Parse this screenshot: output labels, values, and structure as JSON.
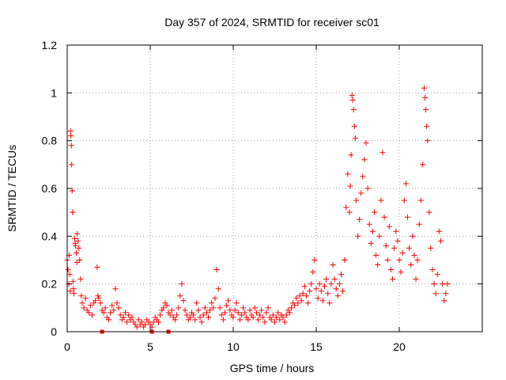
{
  "chart_data": {
    "type": "scatter",
    "title": "Day 357 of 2024, SRMTID for receiver sc01",
    "xlabel": "GPS time / hours",
    "ylabel": "SRMTID / TECUs",
    "xlim": [
      0,
      25
    ],
    "ylim": [
      0,
      1.2
    ],
    "x_ticks": [
      0,
      5,
      10,
      15,
      20
    ],
    "x_tick_labels": [
      "0",
      "5",
      "10",
      "15",
      "20"
    ],
    "y_ticks": [
      0,
      0.2,
      0.4,
      0.6,
      0.8,
      1.0,
      1.2
    ],
    "y_tick_labels": [
      "0",
      "0.2",
      "0.4",
      "0.6",
      "0.8",
      "1",
      "1.2"
    ],
    "grid": true,
    "marker": "+",
    "marker_color": "#ff0000",
    "series": [
      {
        "name": "sc01",
        "points": [
          [
            0.0,
            0.3
          ],
          [
            0.05,
            0.26
          ],
          [
            0.1,
            0.2
          ],
          [
            0.12,
            0.32
          ],
          [
            0.15,
            0.24
          ],
          [
            0.18,
            0.17
          ],
          [
            0.2,
            0.84
          ],
          [
            0.22,
            0.82
          ],
          [
            0.25,
            0.78
          ],
          [
            0.27,
            0.7
          ],
          [
            0.3,
            0.59
          ],
          [
            0.32,
            0.5
          ],
          [
            0.35,
            0.21
          ],
          [
            0.38,
            0.18
          ],
          [
            0.4,
            0.16
          ],
          [
            0.45,
            0.39
          ],
          [
            0.48,
            0.37
          ],
          [
            0.5,
            0.36
          ],
          [
            0.55,
            0.33
          ],
          [
            0.58,
            0.29
          ],
          [
            0.6,
            0.41
          ],
          [
            0.65,
            0.38
          ],
          [
            0.7,
            0.35
          ],
          [
            0.75,
            0.3
          ],
          [
            0.8,
            0.22
          ],
          [
            0.85,
            0.15
          ],
          [
            0.9,
            0.12
          ],
          [
            1.0,
            0.1
          ],
          [
            1.1,
            0.14
          ],
          [
            1.2,
            0.09
          ],
          [
            1.3,
            0.08
          ],
          [
            1.4,
            0.11
          ],
          [
            1.5,
            0.07
          ],
          [
            1.6,
            0.12
          ],
          [
            1.7,
            0.13
          ],
          [
            1.8,
            0.27
          ],
          [
            1.85,
            0.15
          ],
          [
            1.9,
            0.14
          ],
          [
            2.0,
            0.12
          ],
          [
            2.1,
            0.09
          ],
          [
            2.2,
            0.08
          ],
          [
            2.3,
            0.1
          ],
          [
            2.4,
            0.06
          ],
          [
            2.5,
            0.05
          ],
          [
            2.6,
            0.08
          ],
          [
            2.7,
            0.11
          ],
          [
            2.8,
            0.09
          ],
          [
            2.9,
            0.18
          ],
          [
            3.0,
            0.12
          ],
          [
            3.1,
            0.1
          ],
          [
            3.2,
            0.07
          ],
          [
            3.3,
            0.05
          ],
          [
            3.4,
            0.06
          ],
          [
            3.5,
            0.08
          ],
          [
            3.6,
            0.04
          ],
          [
            3.7,
            0.07
          ],
          [
            3.8,
            0.05
          ],
          [
            3.9,
            0.06
          ],
          [
            4.0,
            0.04
          ],
          [
            4.1,
            0.03
          ],
          [
            4.2,
            0.02
          ],
          [
            4.3,
            0.05
          ],
          [
            4.4,
            0.03
          ],
          [
            4.5,
            0.04
          ],
          [
            4.6,
            0.02
          ],
          [
            4.7,
            0.03
          ],
          [
            4.8,
            0.05
          ],
          [
            4.9,
            0.04
          ],
          [
            5.0,
            0.03
          ],
          [
            5.1,
            0.02
          ],
          [
            5.2,
            0.04
          ],
          [
            5.3,
            0.06
          ],
          [
            5.4,
            0.05
          ],
          [
            5.5,
            0.04
          ],
          [
            5.6,
            0.07
          ],
          [
            5.7,
            0.09
          ],
          [
            5.8,
            0.1
          ],
          [
            5.9,
            0.12
          ],
          [
            6.0,
            0.11
          ],
          [
            6.1,
            0.08
          ],
          [
            6.2,
            0.07
          ],
          [
            6.3,
            0.09
          ],
          [
            6.4,
            0.06
          ],
          [
            6.5,
            0.05
          ],
          [
            6.6,
            0.07
          ],
          [
            6.7,
            0.1
          ],
          [
            6.8,
            0.15
          ],
          [
            6.9,
            0.2
          ],
          [
            7.0,
            0.13
          ],
          [
            7.1,
            0.09
          ],
          [
            7.2,
            0.07
          ],
          [
            7.3,
            0.05
          ],
          [
            7.4,
            0.06
          ],
          [
            7.5,
            0.08
          ],
          [
            7.6,
            0.07
          ],
          [
            7.7,
            0.05
          ],
          [
            7.8,
            0.12
          ],
          [
            7.9,
            0.09
          ],
          [
            8.0,
            0.06
          ],
          [
            8.1,
            0.04
          ],
          [
            8.2,
            0.07
          ],
          [
            8.3,
            0.1
          ],
          [
            8.4,
            0.08
          ],
          [
            8.5,
            0.06
          ],
          [
            8.6,
            0.09
          ],
          [
            8.7,
            0.12
          ],
          [
            8.8,
            0.1
          ],
          [
            8.9,
            0.14
          ],
          [
            9.0,
            0.26
          ],
          [
            9.1,
            0.18
          ],
          [
            9.2,
            0.1
          ],
          [
            9.3,
            0.07
          ],
          [
            9.4,
            0.05
          ],
          [
            9.5,
            0.08
          ],
          [
            9.6,
            0.11
          ],
          [
            9.7,
            0.13
          ],
          [
            9.8,
            0.09
          ],
          [
            9.9,
            0.07
          ],
          [
            10.0,
            0.06
          ],
          [
            10.1,
            0.09
          ],
          [
            10.2,
            0.12
          ],
          [
            10.3,
            0.08
          ],
          [
            10.4,
            0.05
          ],
          [
            10.5,
            0.07
          ],
          [
            10.6,
            0.1
          ],
          [
            10.7,
            0.08
          ],
          [
            10.8,
            0.06
          ],
          [
            10.9,
            0.05
          ],
          [
            11.0,
            0.09
          ],
          [
            11.1,
            0.07
          ],
          [
            11.2,
            0.06
          ],
          [
            11.3,
            0.1
          ],
          [
            11.4,
            0.08
          ],
          [
            11.5,
            0.05
          ],
          [
            11.6,
            0.07
          ],
          [
            11.7,
            0.09
          ],
          [
            11.8,
            0.06
          ],
          [
            11.9,
            0.04
          ],
          [
            12.0,
            0.08
          ],
          [
            12.1,
            0.1
          ],
          [
            12.2,
            0.06
          ],
          [
            12.3,
            0.05
          ],
          [
            12.4,
            0.07
          ],
          [
            12.5,
            0.04
          ],
          [
            12.6,
            0.06
          ],
          [
            12.7,
            0.08
          ],
          [
            12.8,
            0.05
          ],
          [
            12.9,
            0.07
          ],
          [
            13.0,
            0.06
          ],
          [
            13.1,
            0.04
          ],
          [
            13.2,
            0.07
          ],
          [
            13.3,
            0.09
          ],
          [
            13.4,
            0.08
          ],
          [
            13.5,
            0.1
          ],
          [
            13.6,
            0.12
          ],
          [
            13.7,
            0.11
          ],
          [
            13.8,
            0.14
          ],
          [
            13.9,
            0.12
          ],
          [
            14.0,
            0.15
          ],
          [
            14.1,
            0.13
          ],
          [
            14.2,
            0.16
          ],
          [
            14.3,
            0.19
          ],
          [
            14.4,
            0.15
          ],
          [
            14.5,
            0.12
          ],
          [
            14.6,
            0.17
          ],
          [
            14.7,
            0.2
          ],
          [
            14.8,
            0.25
          ],
          [
            14.9,
            0.3
          ],
          [
            15.0,
            0.18
          ],
          [
            15.1,
            0.14
          ],
          [
            15.2,
            0.2
          ],
          [
            15.3,
            0.17
          ],
          [
            15.4,
            0.13
          ],
          [
            15.5,
            0.19
          ],
          [
            15.6,
            0.22
          ],
          [
            15.7,
            0.16
          ],
          [
            15.8,
            0.12
          ],
          [
            15.9,
            0.2
          ],
          [
            16.0,
            0.28
          ],
          [
            16.1,
            0.22
          ],
          [
            16.2,
            0.18
          ],
          [
            16.3,
            0.15
          ],
          [
            16.4,
            0.2
          ],
          [
            16.5,
            0.24
          ],
          [
            16.6,
            0.17
          ],
          [
            16.7,
            0.3
          ],
          [
            16.8,
            0.52
          ],
          [
            16.9,
            0.66
          ],
          [
            17.0,
            0.5
          ],
          [
            17.05,
            0.61
          ],
          [
            17.1,
            0.74
          ],
          [
            17.15,
            0.99
          ],
          [
            17.2,
            0.97
          ],
          [
            17.25,
            0.93
          ],
          [
            17.3,
            0.86
          ],
          [
            17.35,
            0.81
          ],
          [
            17.4,
            0.55
          ],
          [
            17.5,
            0.4
          ],
          [
            17.6,
            0.47
          ],
          [
            17.7,
            0.58
          ],
          [
            17.8,
            0.65
          ],
          [
            17.9,
            0.72
          ],
          [
            18.0,
            0.79
          ],
          [
            18.1,
            0.6
          ],
          [
            18.2,
            0.45
          ],
          [
            18.3,
            0.37
          ],
          [
            18.4,
            0.42
          ],
          [
            18.5,
            0.5
          ],
          [
            18.6,
            0.32
          ],
          [
            18.7,
            0.28
          ],
          [
            18.8,
            0.4
          ],
          [
            18.9,
            0.55
          ],
          [
            19.0,
            0.75
          ],
          [
            19.1,
            0.48
          ],
          [
            19.2,
            0.36
          ],
          [
            19.3,
            0.3
          ],
          [
            19.4,
            0.44
          ],
          [
            19.5,
            0.26
          ],
          [
            19.6,
            0.22
          ],
          [
            19.7,
            0.35
          ],
          [
            19.8,
            0.42
          ],
          [
            19.9,
            0.38
          ],
          [
            20.0,
            0.3
          ],
          [
            20.1,
            0.25
          ],
          [
            20.2,
            0.33
          ],
          [
            20.3,
            0.55
          ],
          [
            20.4,
            0.62
          ],
          [
            20.5,
            0.48
          ],
          [
            20.6,
            0.35
          ],
          [
            20.7,
            0.28
          ],
          [
            20.8,
            0.4
          ],
          [
            20.9,
            0.32
          ],
          [
            21.0,
            0.22
          ],
          [
            21.1,
            0.3
          ],
          [
            21.2,
            0.45
          ],
          [
            21.3,
            0.55
          ],
          [
            21.4,
            0.7
          ],
          [
            21.5,
            1.02
          ],
          [
            21.55,
            0.98
          ],
          [
            21.6,
            0.93
          ],
          [
            21.65,
            0.86
          ],
          [
            21.7,
            0.8
          ],
          [
            21.8,
            0.5
          ],
          [
            21.9,
            0.35
          ],
          [
            22.0,
            0.26
          ],
          [
            22.1,
            0.2
          ],
          [
            22.2,
            0.16
          ],
          [
            22.3,
            0.24
          ],
          [
            22.4,
            0.42
          ],
          [
            22.5,
            0.38
          ],
          [
            22.6,
            0.2
          ],
          [
            22.7,
            0.13
          ],
          [
            22.8,
            0.16
          ],
          [
            22.9,
            0.2
          ]
        ]
      }
    ],
    "zero_markers_x": [
      2.1,
      5.1,
      6.1
    ]
  }
}
